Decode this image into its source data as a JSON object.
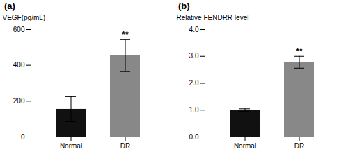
{
  "chart_data": [
    {
      "type": "bar",
      "title": "(a)",
      "categories": [
        "Normal",
        "DR"
      ],
      "values": [
        155,
        455
      ],
      "errors": [
        70,
        90
      ],
      "colors": [
        "#111111",
        "#888888"
      ],
      "ylabel": "VEGF(pg/mL)",
      "ylim": [
        0,
        600
      ],
      "yticks": [
        0,
        200,
        400,
        600
      ],
      "annotations": [
        {
          "category": "DR",
          "text": "**"
        }
      ]
    },
    {
      "type": "bar",
      "title": "(b)",
      "categories": [
        "Normal",
        "DR"
      ],
      "values": [
        1.0,
        2.78
      ],
      "errors": [
        0.05,
        0.22
      ],
      "colors": [
        "#111111",
        "#888888"
      ],
      "ylabel": "Relative FENDRR level",
      "ylim": [
        0,
        4
      ],
      "yticks": [
        0,
        1,
        2,
        3,
        4
      ],
      "annotations": [
        {
          "category": "DR",
          "text": "**"
        }
      ]
    }
  ]
}
